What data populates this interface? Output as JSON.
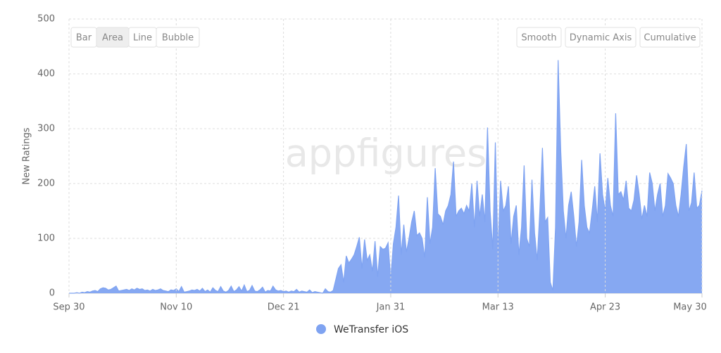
{
  "chart_data": {
    "type": "area",
    "y_label": "New Ratings",
    "watermark": "appfigures",
    "chart_types": [
      "Bar",
      "Area",
      "Line",
      "Bubble"
    ],
    "active_chart_type": "Area",
    "options": [
      "Smooth",
      "Dynamic Axis",
      "Cumulative"
    ],
    "categories": [
      "Sep 30",
      null,
      null,
      null,
      null,
      null,
      null,
      null,
      null,
      null,
      null,
      null,
      null,
      null,
      null,
      null,
      null,
      null,
      null,
      null,
      null,
      null,
      null,
      null,
      null,
      null,
      null,
      null,
      null,
      null,
      null,
      null,
      null,
      null,
      null,
      null,
      null,
      null,
      null,
      null,
      null,
      "Nov 10",
      null,
      null,
      null,
      null,
      null,
      null,
      null,
      null,
      null,
      null,
      null,
      null,
      null,
      null,
      null,
      null,
      null,
      null,
      null,
      null,
      null,
      null,
      null,
      null,
      null,
      null,
      null,
      null,
      null,
      null,
      null,
      null,
      null,
      null,
      null,
      null,
      null,
      null,
      null,
      null,
      "Dec 21",
      null,
      null,
      null,
      null,
      null,
      null,
      null,
      null,
      null,
      null,
      null,
      null,
      null,
      null,
      null,
      null,
      null,
      null,
      null,
      null,
      null,
      null,
      null,
      null,
      null,
      null,
      null,
      null,
      null,
      null,
      null,
      null,
      null,
      null,
      null,
      null,
      null,
      null,
      null,
      null,
      "Jan 31",
      null,
      null,
      null,
      null,
      null,
      null,
      null,
      null,
      null,
      null,
      null,
      null,
      null,
      null,
      null,
      null,
      null,
      null,
      null,
      null,
      null,
      null,
      null,
      null,
      null,
      null,
      null,
      null,
      null,
      null,
      null,
      null,
      null,
      null,
      null,
      null,
      null,
      null,
      null,
      null,
      "Mar 13",
      null,
      null,
      null,
      null,
      null,
      null,
      null,
      null,
      null,
      null,
      null,
      null,
      null,
      null,
      null,
      null,
      null,
      null,
      null,
      null,
      null,
      null,
      null,
      null,
      null,
      null,
      null,
      null,
      null,
      null,
      null,
      null,
      null,
      null,
      null,
      null,
      null,
      null,
      null,
      null,
      "Apr 23",
      null,
      null,
      null,
      null,
      null,
      null,
      null,
      null,
      null,
      null,
      null,
      null,
      null,
      null,
      null,
      null,
      null,
      null,
      null,
      null,
      null,
      null,
      null,
      null,
      null,
      null,
      null,
      null,
      null,
      null,
      null,
      null,
      null,
      null,
      null,
      null,
      "May 30"
    ],
    "series": [
      {
        "name": "WeTransfer iOS",
        "color": "#7fa3f1",
        "values": [
          0,
          0,
          0,
          1,
          0,
          2,
          1,
          3,
          2,
          4,
          5,
          3,
          8,
          10,
          9,
          6,
          7,
          10,
          13,
          4,
          5,
          6,
          7,
          5,
          8,
          6,
          9,
          7,
          8,
          5,
          6,
          4,
          7,
          5,
          6,
          8,
          5,
          4,
          3,
          6,
          5,
          8,
          3,
          12,
          2,
          3,
          4,
          6,
          5,
          7,
          4,
          9,
          3,
          6,
          2,
          10,
          5,
          3,
          12,
          4,
          2,
          5,
          13,
          3,
          6,
          12,
          4,
          15,
          3,
          5,
          14,
          4,
          3,
          6,
          11,
          2,
          5,
          4,
          13,
          6,
          4,
          5,
          3,
          4,
          2,
          4,
          3,
          7,
          2,
          4,
          3,
          2,
          6,
          1,
          3,
          2,
          1,
          0,
          8,
          3,
          2,
          5,
          25,
          45,
          52,
          20,
          68,
          55,
          62,
          70,
          85,
          102,
          45,
          98,
          60,
          70,
          40,
          95,
          30,
          85,
          80,
          82,
          92,
          25,
          90,
          120,
          178,
          70,
          125,
          75,
          100,
          130,
          150,
          105,
          110,
          100,
          65,
          175,
          90,
          120,
          228,
          145,
          140,
          125,
          150,
          160,
          180,
          240,
          140,
          150,
          155,
          145,
          160,
          150,
          200,
          120,
          205,
          140,
          180,
          130,
          302,
          150,
          80,
          275,
          75,
          205,
          150,
          160,
          195,
          90,
          140,
          160,
          70,
          120,
          233,
          100,
          85,
          207,
          110,
          60,
          150,
          265,
          130,
          138,
          20,
          5,
          120,
          425,
          260,
          150,
          100,
          160,
          185,
          140,
          85,
          130,
          243,
          160,
          120,
          110,
          150,
          195,
          130,
          255,
          180,
          150,
          210,
          160,
          140,
          328,
          180,
          185,
          170,
          205,
          155,
          150,
          170,
          215,
          180,
          135,
          160,
          140,
          220,
          200,
          150,
          180,
          200,
          140,
          160,
          218,
          210,
          200,
          160,
          140,
          180,
          230,
          272,
          150,
          165,
          220,
          155,
          160,
          187
        ]
      }
    ],
    "ylim": [
      0,
      500
    ],
    "yticks": [
      0,
      100,
      200,
      300,
      400,
      500
    ],
    "grid": true
  }
}
